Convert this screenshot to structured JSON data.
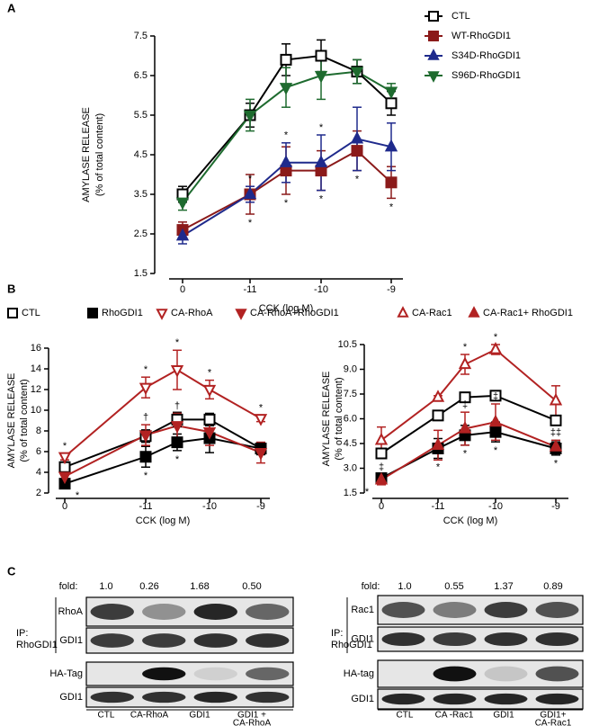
{
  "panels": [
    "A",
    "B",
    "C"
  ],
  "chart_data": [
    {
      "type": "line",
      "xlabel": "CCK (log M)",
      "ylabel": "AMYLASE RELEASE",
      "ylabel_sub": "(% of total content)",
      "categories": [
        "0",
        "-11",
        null,
        "-10",
        null,
        "-9"
      ],
      "ylim": [
        1.5,
        7.5
      ],
      "yticks": [
        1.5,
        2.5,
        3.5,
        4.5,
        5.5,
        6.5,
        7.5
      ],
      "legend": "right",
      "series": [
        {
          "name": "CTL",
          "color": "#000000",
          "marker": "square",
          "filled": false,
          "values": [
            3.5,
            5.5,
            6.9,
            7.0,
            6.6,
            5.8
          ],
          "errors": [
            0.2,
            0.3,
            0.4,
            0.4,
            0.3,
            0.3
          ]
        },
        {
          "name": "WT-RhoGDI1",
          "color": "#8b1a1a",
          "marker": "square",
          "filled": true,
          "values": [
            2.6,
            3.5,
            4.1,
            4.1,
            4.6,
            3.8
          ],
          "errors": [
            0.2,
            0.5,
            0.6,
            0.5,
            0.5,
            0.4
          ],
          "marks": [
            null,
            "*",
            "*",
            "*",
            "*",
            "*"
          ],
          "marks_side": "below"
        },
        {
          "name": "S34D-RhoGDI1",
          "color": "#1f2a8c",
          "marker": "triangle-up",
          "filled": true,
          "values": [
            2.45,
            3.5,
            4.3,
            4.3,
            4.9,
            4.7
          ],
          "errors": [
            0.2,
            0.2,
            0.5,
            0.7,
            0.8,
            0.6
          ],
          "marks": [
            null,
            "*",
            "*",
            "*",
            null,
            null
          ],
          "marks_side": "above"
        },
        {
          "name": "S96D-RhoGDI1",
          "color": "#1e6b2f",
          "marker": "triangle-down",
          "filled": true,
          "values": [
            3.3,
            5.5,
            6.2,
            6.5,
            6.6,
            6.1
          ],
          "errors": [
            0.2,
            0.4,
            0.5,
            0.6,
            0.3,
            0.2
          ]
        }
      ]
    },
    {
      "type": "line",
      "xlabel": "CCK (log M)",
      "ylabel": "AMYLASE RELEASE",
      "ylabel_sub": "(% of total content)",
      "categories": [
        "0",
        "-11",
        null,
        "-10",
        "-9"
      ],
      "ylim": [
        2,
        16
      ],
      "yticks": [
        2,
        4,
        6,
        8,
        10,
        12,
        14,
        16
      ],
      "legend": "top",
      "series": [
        {
          "name": "CTL",
          "color": "#000000",
          "marker": "square",
          "filled": false,
          "values": [
            4.5,
            7.5,
            9.1,
            9.1,
            6.3
          ],
          "errors": [
            0.5,
            0.6,
            0.7,
            0.6,
            0.4
          ]
        },
        {
          "name": "RhoGDI1",
          "color": "#000000",
          "marker": "square",
          "filled": true,
          "values": [
            2.9,
            5.5,
            6.9,
            7.3,
            6.3
          ],
          "errors": [
            0.3,
            1.0,
            0.8,
            1.4,
            0.6
          ],
          "marks": [
            "*",
            "*",
            "*",
            null,
            null
          ],
          "marks_side": "below"
        },
        {
          "name": "CA-RhoA",
          "color": "#b22222",
          "marker": "triangle-down",
          "filled": false,
          "values": [
            5.5,
            12.2,
            13.9,
            12.0,
            9.2
          ],
          "errors": [
            0.3,
            1.0,
            1.9,
            0.9,
            0.3
          ],
          "marks": [
            "*",
            "*",
            "*",
            "*",
            "*"
          ],
          "marks_side": "above"
        },
        {
          "name": "CA-RhoA+RhoGDI1",
          "color": "#b22222",
          "marker": "triangle-down",
          "filled": true,
          "values": [
            3.6,
            7.6,
            8.5,
            7.9,
            5.9
          ],
          "errors": [
            0.3,
            1.0,
            1.2,
            1.3,
            1.0
          ],
          "marks": [
            null,
            "†",
            "†",
            null,
            null
          ],
          "marks_side": "above"
        }
      ]
    },
    {
      "type": "line",
      "xlabel": "CCK (log M)",
      "ylabel": "AMYLASE RELEASE",
      "ylabel_sub": "(% of total content)",
      "categories": [
        "0",
        "-11",
        null,
        "-10",
        "-9"
      ],
      "ylim": [
        1.5,
        10.5
      ],
      "yticks": [
        1.5,
        {
          "value": 3,
          "label": "3.0"
        },
        4.5,
        {
          "value": 6,
          "label": "6.0"
        },
        7.5,
        {
          "value": 9,
          "label": "9.0"
        },
        10.5
      ],
      "legend": "top",
      "series": [
        {
          "name": "CTL",
          "color": "#000000",
          "marker": "square",
          "filled": false,
          "values": [
            3.9,
            6.2,
            7.3,
            7.4,
            5.9
          ],
          "errors": [
            0.3,
            0.3,
            0.3,
            0.3,
            0.3
          ]
        },
        {
          "name": "RhoGDI1",
          "color": "#000000",
          "marker": "square",
          "filled": true,
          "values": [
            2.4,
            4.2,
            5.0,
            5.2,
            4.2
          ],
          "errors": [
            0.3,
            0.6,
            0.6,
            0.6,
            0.4
          ],
          "marks": [
            "*",
            "*",
            "*",
            "*",
            "*"
          ],
          "marks_side": "below"
        },
        {
          "name": "CA-Rac1",
          "color": "#b22222",
          "marker": "triangle-up",
          "filled": false,
          "values": [
            4.7,
            7.3,
            9.3,
            10.2,
            7.1
          ],
          "errors": [
            0.8,
            0.1,
            0.6,
            0.3,
            0.9
          ],
          "marks": [
            null,
            null,
            "*",
            "*",
            null
          ],
          "marks_side": "above"
        },
        {
          "name": "CA-Rac1+ RhoGDI1",
          "color": "#b22222",
          "marker": "triangle-up",
          "filled": true,
          "values": [
            2.3,
            4.4,
            5.4,
            5.8,
            4.3
          ],
          "errors": [
            0.3,
            0.9,
            1.0,
            1.1,
            0.4
          ],
          "marks": [
            "‡",
            null,
            "‡",
            "‡",
            "‡‡"
          ],
          "marks_side": "above"
        }
      ]
    }
  ],
  "blots": [
    {
      "fold_label": "fold:",
      "folds": [
        "1.0",
        "0.26",
        "1.68",
        "0.50"
      ],
      "ip_label": "IP:",
      "ip_target": "RhoGDI1",
      "rows": [
        "RhoA",
        "GDI1",
        "HA-Tag",
        "GDI1"
      ],
      "lanes": [
        [
          "CTL"
        ],
        [
          "CA-RhoA"
        ],
        [
          "GDI1"
        ],
        [
          "GDI1 +",
          "CA-RhoA"
        ]
      ]
    },
    {
      "fold_label": "fold:",
      "folds": [
        "1.0",
        "0.55",
        "1.37",
        "0.89"
      ],
      "ip_label": "IP:",
      "ip_target": "RhoGDI1",
      "rows": [
        "Rac1",
        "GDI1",
        "HA-tag",
        "GDI1"
      ],
      "lanes": [
        [
          "CTL"
        ],
        [
          "CA -Rac1"
        ],
        [
          "GDI1"
        ],
        [
          "GDI1+",
          "CA-Rac1"
        ]
      ]
    }
  ]
}
